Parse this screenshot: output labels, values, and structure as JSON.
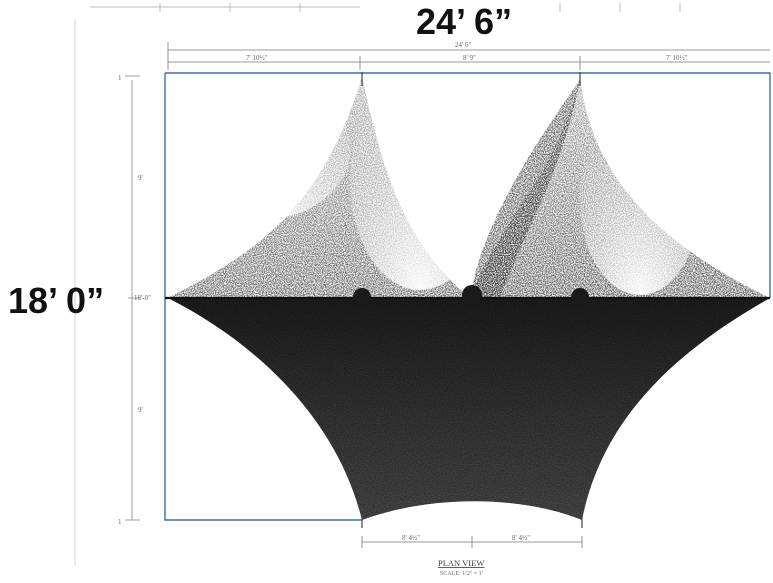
{
  "callouts": {
    "overall_width": "24’ 6”",
    "overall_height": "18’ 0”"
  },
  "drawing": {
    "top_dims": {
      "overall": "24' 6\"",
      "segments": [
        "7' 10½\"",
        "8' 9\"",
        "7' 10½\""
      ]
    },
    "left_dims": {
      "corner_top": "1",
      "upper": "9'",
      "center": "18'-0\"",
      "lower": "9'",
      "corner_bottom": "1"
    },
    "bottom_dims": {
      "segments": [
        "8' 4½\"",
        "8' 4½\""
      ]
    },
    "title": "PLAN VIEW",
    "scale": "SCALE: 1/2\" = 1'"
  },
  "colors": {
    "outline_blue": "#3a6fb0",
    "membrane_dark": "#2a2a2a",
    "centerline": "#111111"
  }
}
